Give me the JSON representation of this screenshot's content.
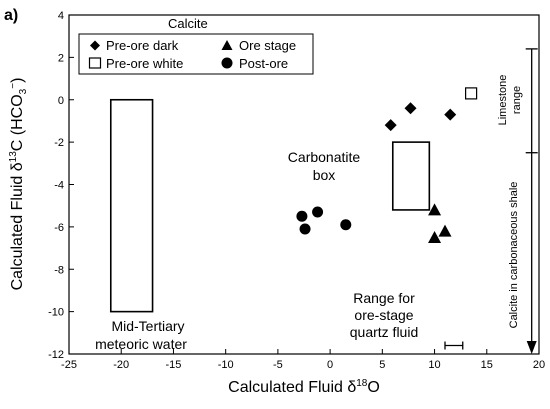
{
  "chart_data": {
    "type": "scatter",
    "panel_label": "a)",
    "xlabel_prefix": "Calculated Fluid δ",
    "xlabel_sup": "18",
    "xlabel_suffix": "O",
    "ylabel_prefix": "Calculated Fluid δ",
    "ylabel_sup": "13",
    "ylabel_mid": "C (HCO",
    "ylabel_sub": "3",
    "ylabel_sup2": "−",
    "ylabel_end": ")",
    "xlim": [
      -25,
      20
    ],
    "ylim": [
      -12,
      4
    ],
    "x_ticks": [
      -25,
      -20,
      -15,
      -10,
      -5,
      0,
      5,
      10,
      15,
      20
    ],
    "x_tick_labels": [
      "-25",
      "-20",
      "-15",
      "-10",
      "-5",
      "0",
      "5",
      "10",
      "15",
      "20"
    ],
    "y_ticks": [
      -12,
      -10,
      -8,
      -6,
      -4,
      -2,
      0,
      2,
      4
    ],
    "y_tick_labels": [
      "-12",
      "-10",
      "-8",
      "-6",
      "-4",
      "-2",
      "0",
      "2",
      "4"
    ],
    "legend": {
      "title": "Calcite",
      "placement": "top-left",
      "entries": [
        {
          "label": "Pre-ore dark",
          "marker": "diamond"
        },
        {
          "label": "Ore stage",
          "marker": "triangle"
        },
        {
          "label": "Pre-ore white",
          "marker": "open-square"
        },
        {
          "label": "Post-ore",
          "marker": "circle"
        }
      ]
    },
    "series": [
      {
        "marker": "diamond",
        "points": [
          [
            5.8,
            -1.2
          ],
          [
            7.7,
            -0.4
          ],
          [
            11.5,
            -0.7
          ]
        ]
      },
      {
        "marker": "triangle",
        "points": [
          [
            10.0,
            -5.2
          ],
          [
            10.0,
            -6.5
          ],
          [
            11.0,
            -6.2
          ]
        ]
      },
      {
        "marker": "open-square",
        "points": [
          [
            13.5,
            0.3
          ]
        ]
      },
      {
        "marker": "circle",
        "points": [
          [
            -2.7,
            -5.5
          ],
          [
            -2.4,
            -6.1
          ],
          [
            -1.2,
            -5.3
          ],
          [
            1.5,
            -5.9
          ]
        ]
      }
    ],
    "regions": [
      {
        "x": [
          -21,
          -17
        ],
        "y": [
          -10,
          0
        ],
        "label_lines": [
          "Mid-Tertiary",
          "meteoric water"
        ]
      },
      {
        "x": [
          6,
          9.5
        ],
        "y": [
          -5.2,
          -2
        ],
        "label_lines": [
          "Carbonatite",
          "box"
        ]
      }
    ],
    "range_bar": {
      "x": [
        11,
        12.7
      ],
      "y": -11.6,
      "label_lines": [
        "Range for",
        "ore-stage",
        "quartz fluid"
      ]
    },
    "vertical_ranges": {
      "x": 19.3,
      "limestone": {
        "y": [
          -2.5,
          2.4
        ],
        "label_lines": [
          "Limestone",
          "range"
        ]
      },
      "shale": {
        "y": [
          -12,
          2.4
        ],
        "label": "Calcite in carbonaceous shale"
      }
    }
  }
}
